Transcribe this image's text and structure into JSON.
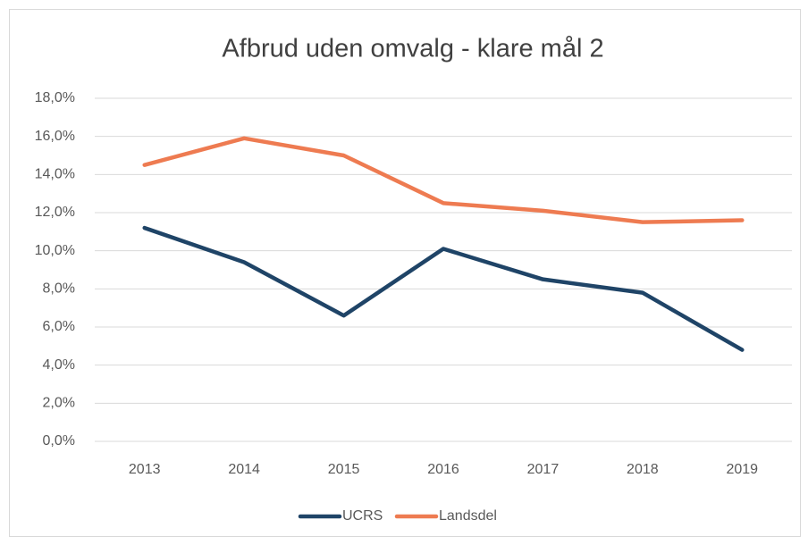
{
  "chart_data": {
    "type": "line",
    "title": "Afbrud uden omvalg - klare mål 2",
    "categories": [
      "2013",
      "2014",
      "2015",
      "2016",
      "2017",
      "2018",
      "2019"
    ],
    "series": [
      {
        "name": "UCRS",
        "color": "#1f4467",
        "values": [
          11.2,
          9.4,
          6.6,
          10.1,
          8.5,
          7.8,
          4.8
        ]
      },
      {
        "name": "Landsdel",
        "color": "#ee7b51",
        "values": [
          14.5,
          15.9,
          15.0,
          12.5,
          12.1,
          11.5,
          11.6
        ]
      }
    ],
    "ylim": [
      0,
      18
    ],
    "yticks": [
      {
        "value": 0,
        "label": "0,0%"
      },
      {
        "value": 2,
        "label": "2,0%"
      },
      {
        "value": 4,
        "label": "4,0%"
      },
      {
        "value": 6,
        "label": "6,0%"
      },
      {
        "value": 8,
        "label": "8,0%"
      },
      {
        "value": 10,
        "label": "10,0%"
      },
      {
        "value": 12,
        "label": "12,0%"
      },
      {
        "value": 14,
        "label": "14,0%"
      },
      {
        "value": 16,
        "label": "16,0%"
      },
      {
        "value": 18,
        "label": "18,0%"
      }
    ],
    "grid": true,
    "legend": "bottom"
  }
}
